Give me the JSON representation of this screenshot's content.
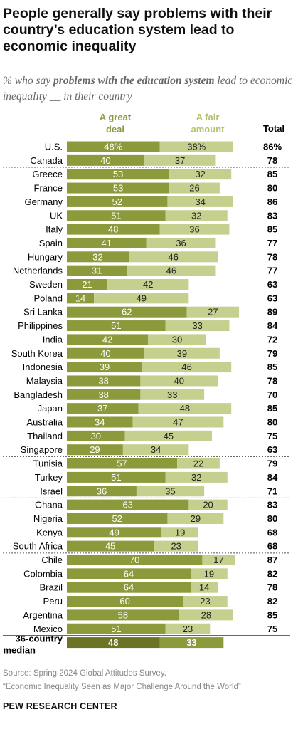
{
  "title": "People generally say problems with their country’s education system lead to economic inequality",
  "subtitle_prefix": "% who say ",
  "subtitle_bold": "problems with the education system",
  "subtitle_suffix": " lead to economic inequality __ in their country",
  "header": {
    "great_deal": "A great deal",
    "fair_amount": "A fair amount",
    "total": "Total"
  },
  "colors": {
    "great_deal": "#8c9a3c",
    "fair_amount": "#c5d08f",
    "median_great": "#6b7325",
    "median_fair": "#8c9a3c",
    "header_great": "#8c9a3c",
    "header_fair": "#b7c26e",
    "divider": "#555555"
  },
  "chart_data": {
    "type": "bar",
    "stacked": true,
    "orientation": "horizontal",
    "series": [
      {
        "name": "A great deal",
        "values": [
          48,
          40,
          53,
          53,
          52,
          51,
          48,
          41,
          32,
          31,
          21,
          14,
          62,
          51,
          42,
          40,
          39,
          38,
          38,
          37,
          34,
          30,
          29,
          57,
          51,
          36,
          63,
          52,
          49,
          45,
          70,
          64,
          64,
          60,
          58,
          51,
          48
        ]
      },
      {
        "name": "A fair amount",
        "values": [
          38,
          37,
          32,
          26,
          34,
          32,
          36,
          36,
          46,
          46,
          42,
          49,
          27,
          33,
          30,
          39,
          46,
          40,
          33,
          48,
          47,
          45,
          34,
          22,
          32,
          35,
          20,
          29,
          19,
          23,
          17,
          19,
          14,
          23,
          28,
          23,
          33
        ]
      }
    ],
    "categories": [
      "U.S.",
      "Canada",
      "Greece",
      "France",
      "Germany",
      "UK",
      "Italy",
      "Spain",
      "Hungary",
      "Netherlands",
      "Sweden",
      "Poland",
      "Sri Lanka",
      "Philippines",
      "India",
      "South Korea",
      "Indonesia",
      "Malaysia",
      "Bangladesh",
      "Japan",
      "Australia",
      "Thailand",
      "Singapore",
      "Tunisia",
      "Turkey",
      "Israel",
      "Ghana",
      "Nigeria",
      "Kenya",
      "South Africa",
      "Chile",
      "Colombia",
      "Brazil",
      "Peru",
      "Argentina",
      "Mexico",
      "36-country median"
    ],
    "great_labels": [
      "48%",
      "40",
      "53",
      "53",
      "52",
      "51",
      "48",
      "41",
      "32",
      "31",
      "21",
      "14",
      "62",
      "51",
      "42",
      "40",
      "39",
      "38",
      "38",
      "37",
      "34",
      "30",
      "29",
      "57",
      "51",
      "36",
      "63",
      "52",
      "49",
      "45",
      "70",
      "64",
      "64",
      "60",
      "58",
      "51",
      "48"
    ],
    "fair_labels": [
      "38%",
      "37",
      "32",
      "26",
      "34",
      "32",
      "36",
      "36",
      "46",
      "46",
      "42",
      "49",
      "27",
      "33",
      "30",
      "39",
      "46",
      "40",
      "33",
      "48",
      "47",
      "45",
      "34",
      "22",
      "32",
      "35",
      "20",
      "29",
      "19",
      "23",
      "17",
      "19",
      "14",
      "23",
      "28",
      "23",
      "33"
    ],
    "totals": [
      "86%",
      "78",
      "85",
      "80",
      "86",
      "83",
      "85",
      "77",
      "78",
      "77",
      "63",
      "63",
      "89",
      "84",
      "72",
      "79",
      "85",
      "78",
      "70",
      "85",
      "80",
      "75",
      "63",
      "79",
      "84",
      "71",
      "83",
      "80",
      "68",
      "68",
      "87",
      "82",
      "78",
      "82",
      "85",
      "75",
      ""
    ],
    "groups_end_after": [
      "Canada",
      "Poland",
      "Singapore",
      "Israel",
      "South Africa",
      "Mexico"
    ]
  },
  "source_line1": "Source: Spring 2024 Global Attitudes Survey.",
  "source_line2": "“Economic Inequality Seen as Major Challenge Around the World”",
  "brand": "PEW RESEARCH CENTER"
}
